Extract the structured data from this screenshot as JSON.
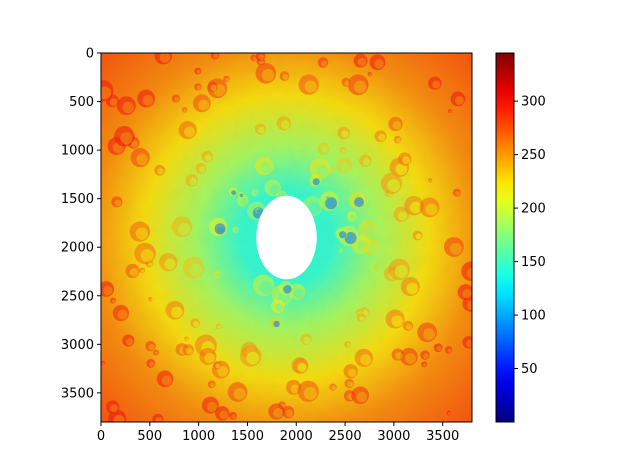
{
  "chart_data": [
    {
      "type": "heatmap",
      "title": "",
      "xlabel": "",
      "ylabel": "",
      "extent": {
        "x": [
          0,
          3800
        ],
        "y": [
          3800,
          0
        ]
      },
      "xticks": [
        0,
        500,
        1000,
        1500,
        2000,
        2500,
        3000,
        3500
      ],
      "yticks": [
        0,
        500,
        1000,
        1500,
        2000,
        2500,
        3000,
        3500
      ],
      "colormap": "jet",
      "colorbar": {
        "range": [
          0,
          345
        ],
        "ticks": [
          50,
          100,
          150,
          200,
          250,
          300
        ],
        "placement": "right"
      },
      "description_of_field": {
        "center": [
          1900,
          1900
        ],
        "no_data_hole": {
          "center": [
            1900,
            1900
          ],
          "rx": 310,
          "ry": 430
        },
        "center_ring_value": 140,
        "outer_value": 275,
        "low_value_crater_spots": 85
      },
      "grid": false,
      "colors": {
        "no_data": "#ffffff",
        "axis": "#000000"
      }
    }
  ]
}
